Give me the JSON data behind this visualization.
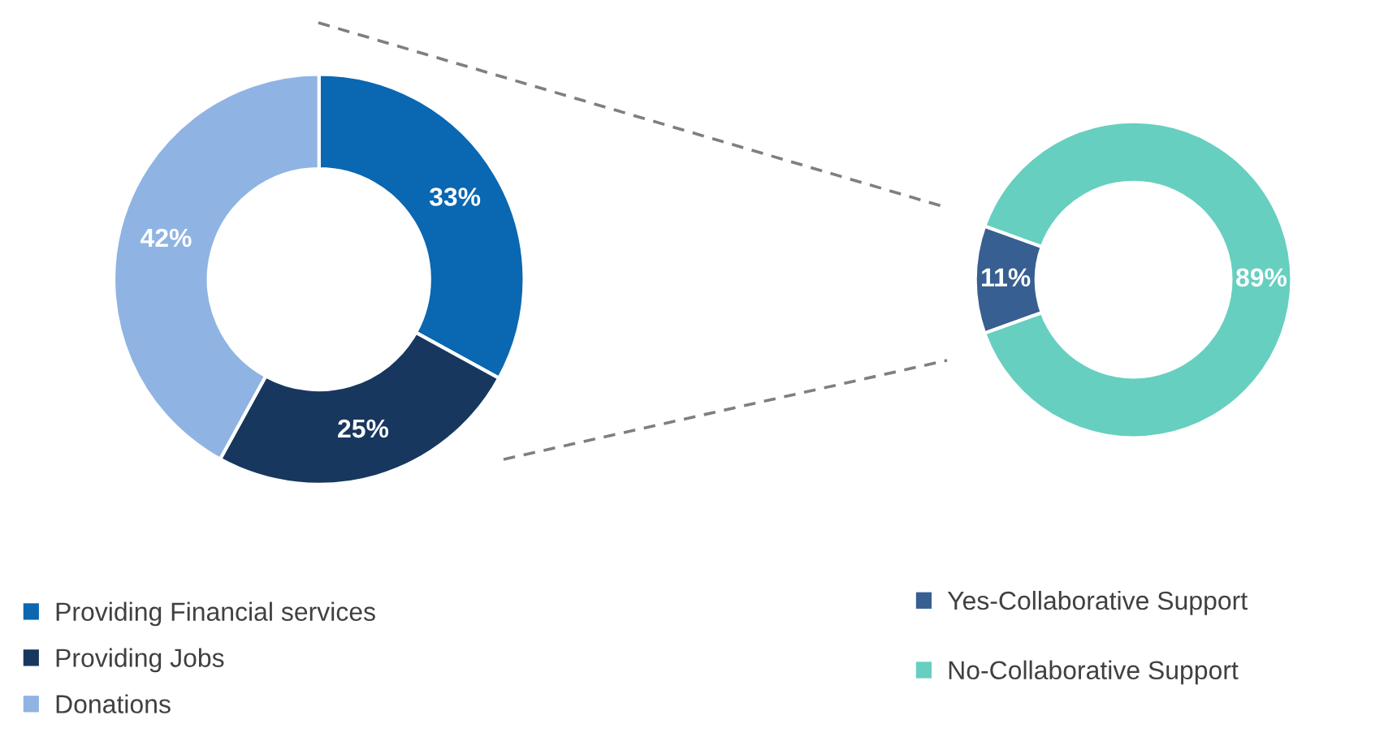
{
  "chart_data": [
    {
      "type": "donut",
      "categories": [
        "Providing Financial services",
        "Providing Jobs",
        "Donations"
      ],
      "values": [
        33,
        25,
        42
      ],
      "colors": [
        "#0a67b2",
        "#17375e",
        "#8fb4e3"
      ],
      "value_labels": [
        "33%",
        "25%",
        "42%"
      ],
      "legend": "bottom"
    },
    {
      "type": "donut",
      "categories": [
        "Yes-Collaborative Support",
        "No-Collaborative Support"
      ],
      "values": [
        11,
        89
      ],
      "colors": [
        "#375f91",
        "#66cfc0"
      ],
      "value_labels": [
        "11%",
        "89%"
      ],
      "legend": "bottom"
    }
  ]
}
